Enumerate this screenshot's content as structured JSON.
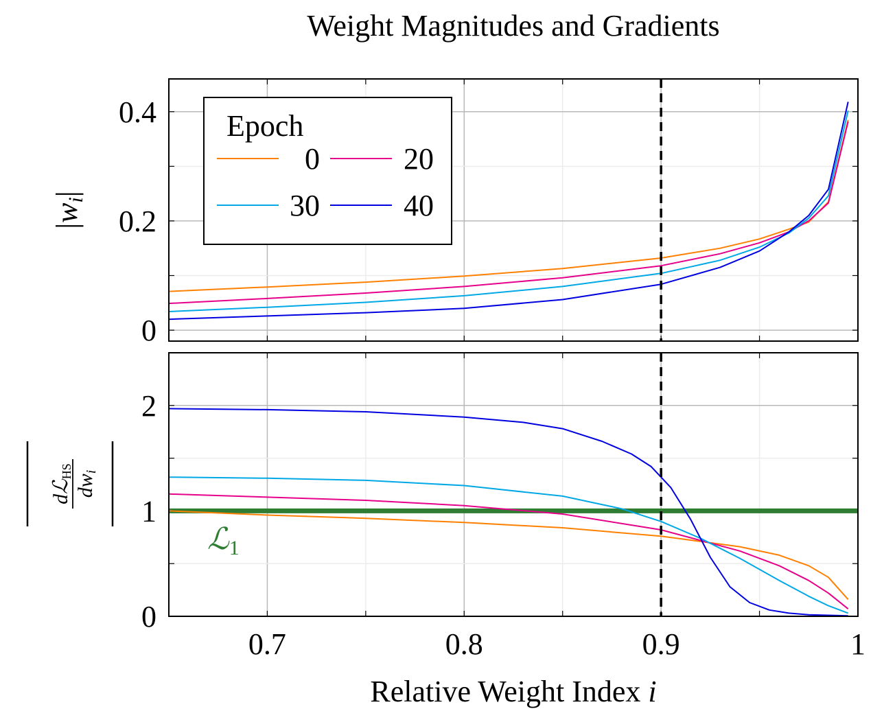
{
  "colors": {
    "epoch_0": "#ff8000",
    "epoch_20": "#e6008a",
    "epoch_30": "#00a8e6",
    "epoch_40": "#0000e0",
    "l1": "#2e7d32",
    "marker": "#000000"
  },
  "chart_data": {
    "title": "Weight Magnitudes and Gradients",
    "xlabel": "Relative Weight Index",
    "xlabel_var": "i",
    "x_range": [
      0.65,
      1.0
    ],
    "x_ticks": [
      0.7,
      0.8,
      0.9,
      1.0
    ],
    "x_tick_labels": [
      "0.7",
      "0.8",
      "0.9",
      "1"
    ],
    "vline_x": 0.9,
    "grid": true,
    "legend": {
      "title": "Epoch",
      "placement": "top-left",
      "entries": [
        "0",
        "20",
        "30",
        "40"
      ]
    },
    "panels": [
      {
        "type": "line",
        "name": "magnitudes",
        "ylabel": "|w_i|",
        "ylabel_parts": {
          "bar_left": "|",
          "base": "w",
          "sub": "i",
          "bar_right": "|"
        },
        "y_range": [
          -0.02,
          0.46
        ],
        "y_ticks": [
          0,
          0.2,
          0.4
        ],
        "y_tick_labels": [
          "0",
          "0.2",
          "0.4"
        ],
        "series": [
          {
            "name": "0",
            "color_key": "epoch_0",
            "x": [
              0.65,
              0.7,
              0.75,
              0.8,
              0.85,
              0.9,
              0.93,
              0.95,
              0.965,
              0.975,
              0.985,
              0.995
            ],
            "y": [
              0.071,
              0.079,
              0.088,
              0.099,
              0.113,
              0.132,
              0.15,
              0.167,
              0.185,
              0.198,
              0.235,
              0.385
            ]
          },
          {
            "name": "20",
            "color_key": "epoch_20",
            "x": [
              0.65,
              0.7,
              0.75,
              0.8,
              0.85,
              0.9,
              0.93,
              0.95,
              0.965,
              0.975,
              0.985,
              0.995
            ],
            "y": [
              0.049,
              0.058,
              0.068,
              0.08,
              0.096,
              0.118,
              0.14,
              0.16,
              0.18,
              0.2,
              0.233,
              0.382
            ]
          },
          {
            "name": "30",
            "color_key": "epoch_30",
            "x": [
              0.65,
              0.7,
              0.75,
              0.8,
              0.85,
              0.9,
              0.93,
              0.95,
              0.965,
              0.975,
              0.985,
              0.995
            ],
            "y": [
              0.034,
              0.042,
              0.051,
              0.063,
              0.08,
              0.104,
              0.128,
              0.152,
              0.178,
              0.205,
              0.246,
              0.402
            ]
          },
          {
            "name": "40",
            "color_key": "epoch_40",
            "x": [
              0.65,
              0.7,
              0.75,
              0.8,
              0.85,
              0.9,
              0.93,
              0.95,
              0.965,
              0.975,
              0.985,
              0.995
            ],
            "y": [
              0.02,
              0.026,
              0.032,
              0.04,
              0.056,
              0.084,
              0.115,
              0.145,
              0.18,
              0.21,
              0.258,
              0.418
            ]
          }
        ]
      },
      {
        "type": "line",
        "name": "gradients",
        "ylabel": "|dL_HS / dw_i|",
        "ylabel_parts": {
          "num": "dℒ",
          "num_sub": "HS",
          "den": "dw",
          "den_sub": "i"
        },
        "y_range": [
          0,
          2.5
        ],
        "y_ticks": [
          0,
          1,
          2
        ],
        "y_tick_labels": [
          "0",
          "1",
          "2"
        ],
        "hline": {
          "y": 1.0,
          "label": "ℒ",
          "label_sub": "1"
        },
        "series": [
          {
            "name": "0",
            "color_key": "epoch_0",
            "x": [
              0.65,
              0.7,
              0.75,
              0.8,
              0.85,
              0.9,
              0.92,
              0.94,
              0.96,
              0.975,
              0.985,
              0.995
            ],
            "y": [
              1.0,
              0.96,
              0.93,
              0.89,
              0.84,
              0.76,
              0.71,
              0.66,
              0.58,
              0.48,
              0.37,
              0.16
            ]
          },
          {
            "name": "20",
            "color_key": "epoch_20",
            "x": [
              0.65,
              0.7,
              0.75,
              0.8,
              0.85,
              0.9,
              0.92,
              0.94,
              0.96,
              0.975,
              0.985,
              0.995
            ],
            "y": [
              1.16,
              1.13,
              1.1,
              1.05,
              0.97,
              0.82,
              0.72,
              0.62,
              0.48,
              0.34,
              0.22,
              0.07
            ]
          },
          {
            "name": "30",
            "color_key": "epoch_30",
            "x": [
              0.65,
              0.7,
              0.75,
              0.8,
              0.85,
              0.88,
              0.9,
              0.92,
              0.94,
              0.96,
              0.975,
              0.985,
              0.995
            ],
            "y": [
              1.32,
              1.31,
              1.29,
              1.24,
              1.14,
              1.02,
              0.9,
              0.74,
              0.55,
              0.34,
              0.19,
              0.1,
              0.03
            ]
          },
          {
            "name": "40",
            "color_key": "epoch_40",
            "x": [
              0.65,
              0.7,
              0.75,
              0.8,
              0.83,
              0.85,
              0.87,
              0.885,
              0.895,
              0.905,
              0.915,
              0.925,
              0.935,
              0.945,
              0.955,
              0.965,
              0.975,
              0.985,
              0.995
            ],
            "y": [
              1.97,
              1.96,
              1.94,
              1.89,
              1.84,
              1.78,
              1.66,
              1.54,
              1.42,
              1.22,
              0.92,
              0.56,
              0.28,
              0.13,
              0.06,
              0.03,
              0.015,
              0.01,
              0.005
            ]
          }
        ]
      }
    ]
  }
}
